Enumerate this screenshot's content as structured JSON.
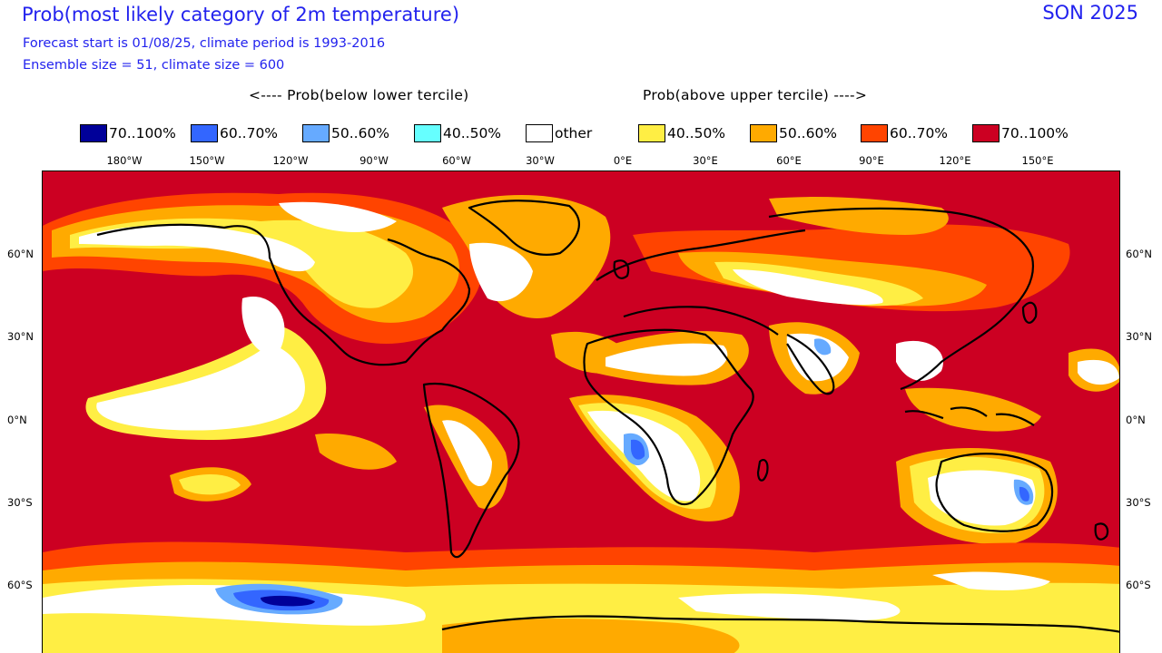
{
  "header": {
    "title": "Prob(most likely category of 2m temperature)",
    "season": "SON 2025",
    "line1": "Forecast start is 01/08/25, climate period is 1993-2016",
    "line2": "Ensemble size = 51, climate size = 600"
  },
  "legend": {
    "below_label": "<---- Prob(below lower tercile)",
    "above_label": "Prob(above upper tercile) ---->",
    "items": [
      {
        "label": "70..100%",
        "color": "#000099"
      },
      {
        "label": "60..70%",
        "color": "#3366ff"
      },
      {
        "label": "50..60%",
        "color": "#66aaff"
      },
      {
        "label": "40..50%",
        "color": "#66ffff"
      },
      {
        "label": "other",
        "color": "#ffffff"
      },
      {
        "label": "40..50%",
        "color": "#ffee44"
      },
      {
        "label": "50..60%",
        "color": "#ffaa00"
      },
      {
        "label": "60..70%",
        "color": "#ff4400"
      },
      {
        "label": "70..100%",
        "color": "#cc0022"
      }
    ]
  },
  "axes": {
    "lon_labels": [
      "180°W",
      "150°W",
      "120°W",
      "90°W",
      "60°W",
      "30°W",
      "0°E",
      "30°E",
      "60°E",
      "90°E",
      "120°E",
      "150°E"
    ],
    "lat_labels": [
      "60°N",
      "30°N",
      "0°N",
      "30°S",
      "60°S"
    ]
  },
  "colors": {
    "background_field": "#cc0022",
    "coastline": "#000000"
  }
}
